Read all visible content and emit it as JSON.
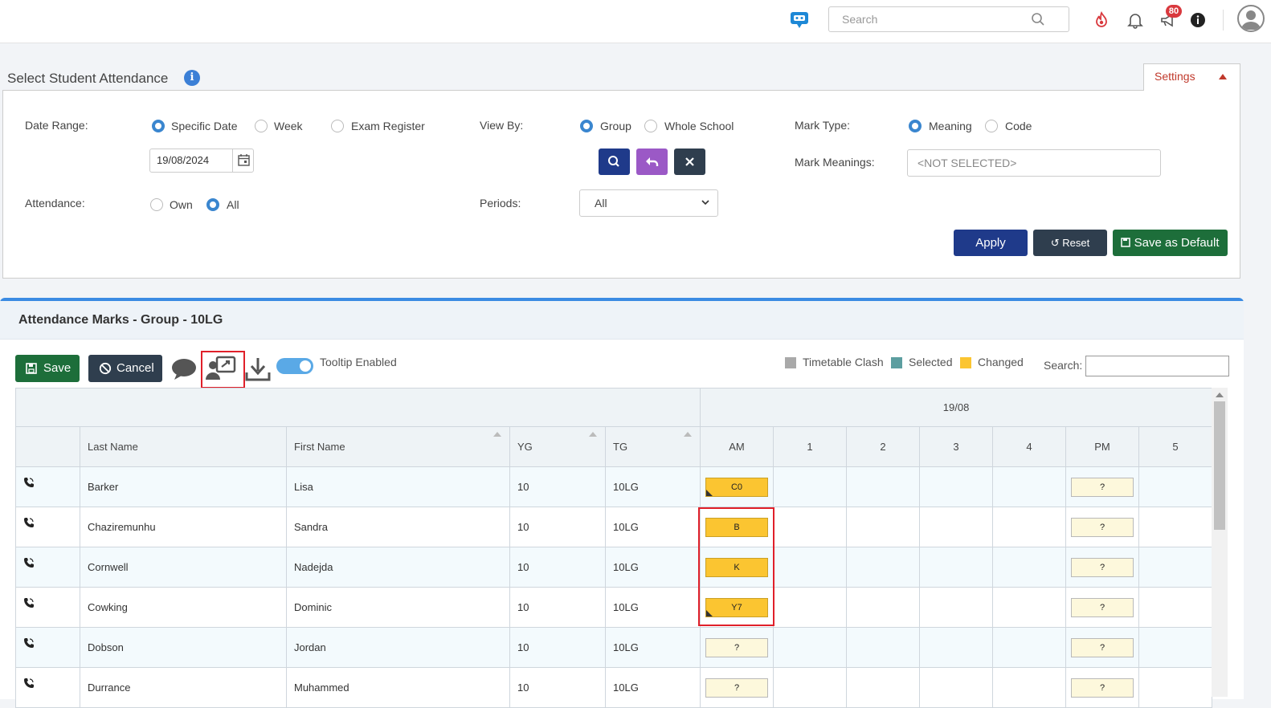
{
  "topbar": {
    "search_placeholder": "Search",
    "notification_count": "80",
    "icons": [
      "chatbot-icon",
      "search-icon",
      "flame-icon",
      "bell-icon",
      "megaphone-icon",
      "info-icon",
      "user-avatar-icon"
    ]
  },
  "filter": {
    "title": "Select Student Attendance",
    "settings_label": "Settings",
    "date_range_label": "Date Range:",
    "date_range_options": [
      "Specific Date",
      "Week",
      "Exam Register"
    ],
    "date_range_selected": "Specific Date",
    "date_value": "19/08/2024",
    "attendance_label": "Attendance:",
    "attendance_options": [
      "Own",
      "All"
    ],
    "attendance_selected": "All",
    "view_by_label": "View By:",
    "view_by_options": [
      "Group",
      "Whole School"
    ],
    "view_by_selected": "Group",
    "periods_label": "Periods:",
    "periods_value": "All",
    "mark_type_label": "Mark Type:",
    "mark_type_options": [
      "Meaning",
      "Code"
    ],
    "mark_type_selected": "Meaning",
    "mark_meanings_label": "Mark Meanings:",
    "mark_meanings_placeholder": "<NOT SELECTED>",
    "apply_label": "Apply",
    "reset_label": "Reset",
    "save_default_label": "Save as Default"
  },
  "grid": {
    "title": "Attendance Marks - Group - 10LG",
    "save_label": "Save",
    "cancel_label": "Cancel",
    "tooltip_label": "Tooltip Enabled",
    "tooltip_enabled": true,
    "legend": [
      {
        "label": "Timetable Clash",
        "color": "#a9a9a9"
      },
      {
        "label": "Selected",
        "color": "#5c9ea0"
      },
      {
        "label": "Changed",
        "color": "#fbc531"
      }
    ],
    "search_label": "Search:",
    "date_header": "19/08",
    "columns": [
      "Last Name",
      "First Name",
      "YG",
      "TG"
    ],
    "periods": [
      "AM",
      "1",
      "2",
      "3",
      "4",
      "PM",
      "5"
    ],
    "rows": [
      {
        "last": "Barker",
        "first": "Lisa",
        "yg": "10",
        "tg": "10LG",
        "am": "C0",
        "am_changed": true,
        "am_corner": true,
        "pm": "?"
      },
      {
        "last": "Chaziremunhu",
        "first": "Sandra",
        "yg": "10",
        "tg": "10LG",
        "am": "B",
        "am_changed": true,
        "am_corner": false,
        "pm": "?"
      },
      {
        "last": "Cornwell",
        "first": "Nadejda",
        "yg": "10",
        "tg": "10LG",
        "am": "K",
        "am_changed": true,
        "am_corner": false,
        "pm": "?"
      },
      {
        "last": "Cowking",
        "first": "Dominic",
        "yg": "10",
        "tg": "10LG",
        "am": "Y7",
        "am_changed": true,
        "am_corner": true,
        "pm": "?"
      },
      {
        "last": "Dobson",
        "first": "Jordan",
        "yg": "10",
        "tg": "10LG",
        "am": "?",
        "am_changed": false,
        "am_corner": false,
        "pm": "?"
      },
      {
        "last": "Durrance",
        "first": "Muhammed",
        "yg": "10",
        "tg": "10LG",
        "am": "?",
        "am_changed": false,
        "am_corner": false,
        "pm": "?"
      }
    ]
  }
}
